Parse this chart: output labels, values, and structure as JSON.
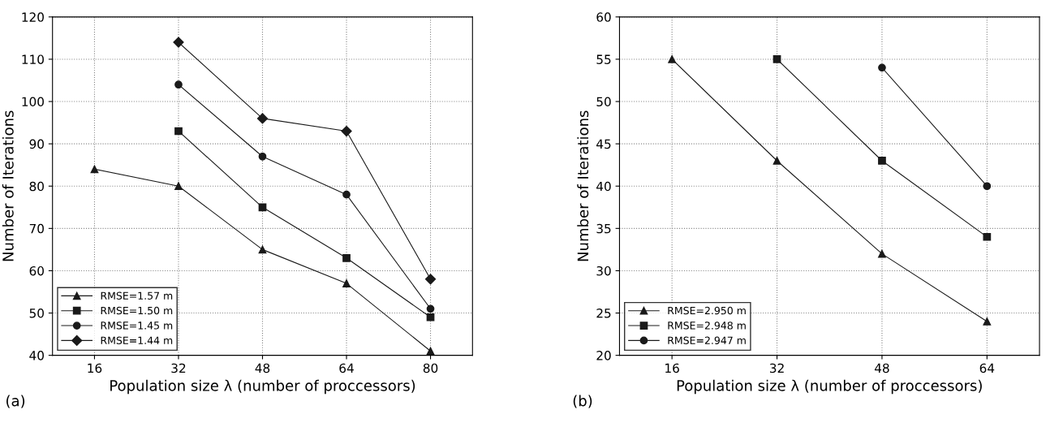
{
  "chart_data": [
    {
      "type": "line",
      "xlabel": "Population size λ (number of proccessors)",
      "ylabel": "Number of Iterations",
      "annotations": [
        "(a)"
      ],
      "x": [
        16,
        32,
        48,
        64,
        80
      ],
      "xlim": [
        8,
        88
      ],
      "xticks": [
        16,
        32,
        48,
        64,
        80
      ],
      "ylim": [
        40,
        120
      ],
      "yticks": [
        40,
        50,
        60,
        70,
        80,
        90,
        100,
        110,
        120
      ],
      "grid": true,
      "legend": "bottom left",
      "line_style": "solid",
      "series": [
        {
          "name": "RMSE=1.57 m",
          "color": "#1a1a1a",
          "marker": "triangle",
          "values": [
            84,
            80,
            65,
            57,
            41
          ]
        },
        {
          "name": "RMSE=1.50 m",
          "color": "#1a1a1a",
          "marker": "square",
          "values": [
            null,
            93,
            75,
            63,
            49
          ]
        },
        {
          "name": "RMSE=1.45 m",
          "color": "#1a1a1a",
          "marker": "circle",
          "values": [
            null,
            104,
            87,
            78,
            51
          ]
        },
        {
          "name": "RMSE=1.44 m",
          "color": "#1a1a1a",
          "marker": "diamond",
          "values": [
            null,
            114,
            96,
            93,
            58
          ]
        }
      ]
    },
    {
      "type": "line",
      "xlabel": "Population size λ (number of proccessors)",
      "ylabel": "Number of Iterations",
      "annotations": [
        "(b)"
      ],
      "x": [
        16,
        32,
        48,
        64
      ],
      "xlim": [
        8,
        72
      ],
      "xticks": [
        16,
        32,
        48,
        64
      ],
      "ylim": [
        20,
        60
      ],
      "yticks": [
        20,
        25,
        30,
        35,
        40,
        45,
        50,
        55,
        60
      ],
      "grid": true,
      "legend": "bottom left",
      "line_style": "solid",
      "series": [
        {
          "name": "RMSE=2.950 m",
          "color": "#1a1a1a",
          "marker": "triangle",
          "values": [
            55,
            43,
            32,
            24
          ]
        },
        {
          "name": "RMSE=2.948 m",
          "color": "#1a1a1a",
          "marker": "square",
          "values": [
            null,
            55,
            43,
            34
          ]
        },
        {
          "name": "RMSE=2.947 m",
          "color": "#1a1a1a",
          "marker": "circle",
          "values": [
            null,
            null,
            54,
            40
          ]
        }
      ]
    }
  ]
}
